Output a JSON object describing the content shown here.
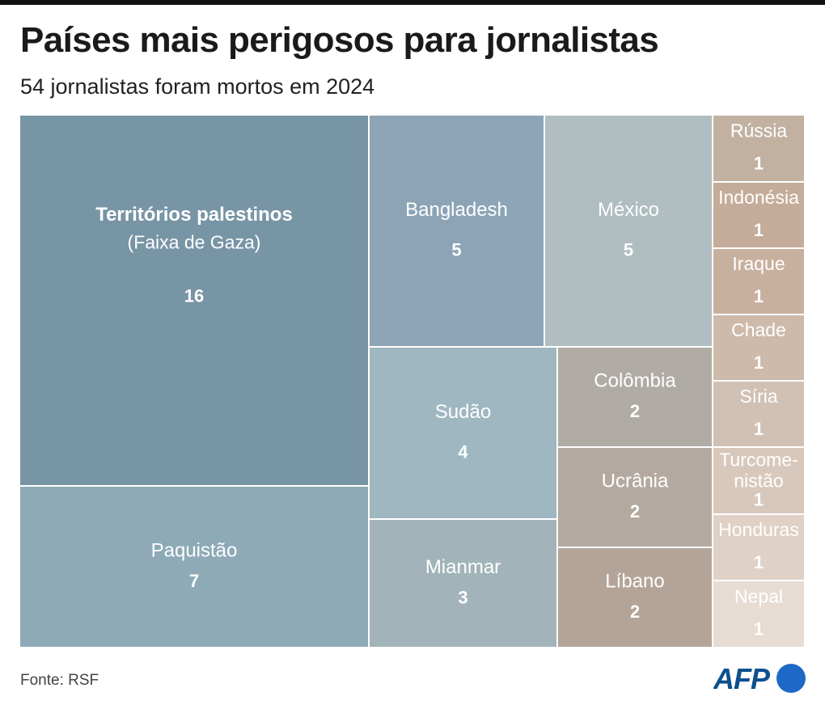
{
  "title": "Países mais perigosos para jornalistas",
  "subtitle": "54 jornalistas foram mortos em 2024",
  "source": "Fonte: RSF",
  "logo_text": "AFP",
  "chart_data": {
    "type": "treemap",
    "total": 54,
    "items": [
      {
        "label": "Territórios palestinos",
        "sublabel": "(Faixa de Gaza)",
        "value": 16,
        "color": "#7895a6"
      },
      {
        "label": "Paquistão",
        "value": 7,
        "color": "#8eaab7"
      },
      {
        "label": "Bangladesh",
        "value": 5,
        "color": "#8ca4b5"
      },
      {
        "label": "México",
        "value": 5,
        "color": "#b0bdc1"
      },
      {
        "label": "Sudão",
        "value": 4,
        "color": "#9fb7c1"
      },
      {
        "label": "Mianmar",
        "value": 3,
        "color": "#a2b4b9"
      },
      {
        "label": "Colômbia",
        "value": 2,
        "color": "#b0aca5"
      },
      {
        "label": "Ucrânia",
        "value": 2,
        "color": "#b4a9a0"
      },
      {
        "label": "Líbano",
        "value": 2,
        "color": "#b4a497"
      },
      {
        "label": "Rússia",
        "value": 1,
        "color": "#c2b1a1"
      },
      {
        "label": "Indonésia",
        "value": 1,
        "color": "#c4ac9a"
      },
      {
        "label": "Iraque",
        "value": 1,
        "color": "#c8b09f"
      },
      {
        "label": "Chade",
        "value": 1,
        "color": "#cdbaab"
      },
      {
        "label": "Síria",
        "value": 1,
        "color": "#d1c1b4"
      },
      {
        "label": "Turcome-\nnistão",
        "value": 1,
        "color": "#d8c8bc"
      },
      {
        "label": "Honduras",
        "value": 1,
        "color": "#dfd1c6"
      },
      {
        "label": "Nepal",
        "value": 1,
        "color": "#e7dcd4"
      }
    ]
  },
  "colors": {
    "logo_text": "#0d4f8f",
    "logo_circle": "#1e68c7"
  }
}
